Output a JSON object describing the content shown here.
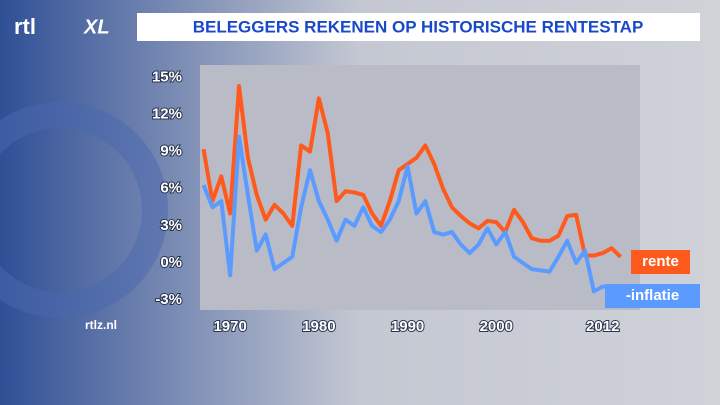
{
  "logo": "rtl",
  "logo_suffix": "XL",
  "source": "rtlz.nl",
  "chart_data": {
    "type": "line",
    "title": "BELEGGERS REKENEN OP HISTORISCHE RENTESTAP",
    "x": [
      1967,
      1968,
      1969,
      1970,
      1971,
      1972,
      1973,
      1974,
      1975,
      1976,
      1977,
      1978,
      1979,
      1980,
      1981,
      1982,
      1983,
      1984,
      1985,
      1986,
      1987,
      1988,
      1989,
      1990,
      1991,
      1992,
      1993,
      1994,
      1995,
      1996,
      1997,
      1998,
      1999,
      2000,
      2001,
      2002,
      2003,
      2004,
      2005,
      2006,
      2007,
      2008,
      2009,
      2010,
      2011,
      2012,
      2013,
      2014
    ],
    "series": [
      {
        "name": "rente",
        "color": "#ff5a1e",
        "values": [
          9.2,
          5.0,
          7.0,
          4.0,
          14.3,
          8.5,
          5.5,
          3.5,
          4.7,
          4.0,
          3.0,
          9.5,
          9.0,
          13.3,
          10.5,
          5.0,
          5.8,
          5.7,
          5.5,
          4.0,
          3.0,
          5.0,
          7.5,
          8.0,
          8.5,
          9.5,
          8.0,
          6.0,
          4.5,
          3.8,
          3.2,
          2.8,
          3.4,
          3.3,
          2.5,
          4.3,
          3.3,
          2.0,
          1.8,
          1.8,
          2.2,
          3.8,
          3.9,
          0.6,
          0.6,
          0.8,
          1.2,
          0.5
        ]
      },
      {
        "name": "-inflatie",
        "color": "#5b9bff",
        "values": [
          6.3,
          4.5,
          5.0,
          -1.0,
          10.2,
          5.5,
          1.0,
          2.3,
          -0.5,
          0.0,
          0.5,
          4.5,
          7.5,
          5.0,
          3.5,
          1.8,
          3.5,
          3.0,
          4.5,
          3.0,
          2.5,
          3.5,
          5.0,
          7.8,
          4.0,
          5.0,
          2.5,
          2.3,
          2.5,
          1.5,
          0.8,
          1.5,
          2.8,
          1.5,
          2.5,
          0.5,
          0.0,
          -0.5,
          -0.6,
          -0.7,
          0.5,
          1.8,
          0.0,
          1.0,
          -2.3,
          -1.9,
          -2.0,
          -2.0
        ]
      }
    ],
    "xlim": [
      1966.6,
      2016.2
    ],
    "xticks": [
      1970,
      1980,
      1990,
      2000,
      2012
    ],
    "ylim": [
      -3.8,
      16
    ],
    "yticks": [
      {
        "value": -3,
        "label": "-3%"
      },
      {
        "value": 0,
        "label": "0%"
      },
      {
        "value": 3,
        "label": "3%"
      },
      {
        "value": 6,
        "label": "6%"
      },
      {
        "value": 9,
        "label": "9%"
      },
      {
        "value": 12,
        "label": "12%"
      },
      {
        "value": 15,
        "label": "15%"
      }
    ],
    "grid": false
  }
}
